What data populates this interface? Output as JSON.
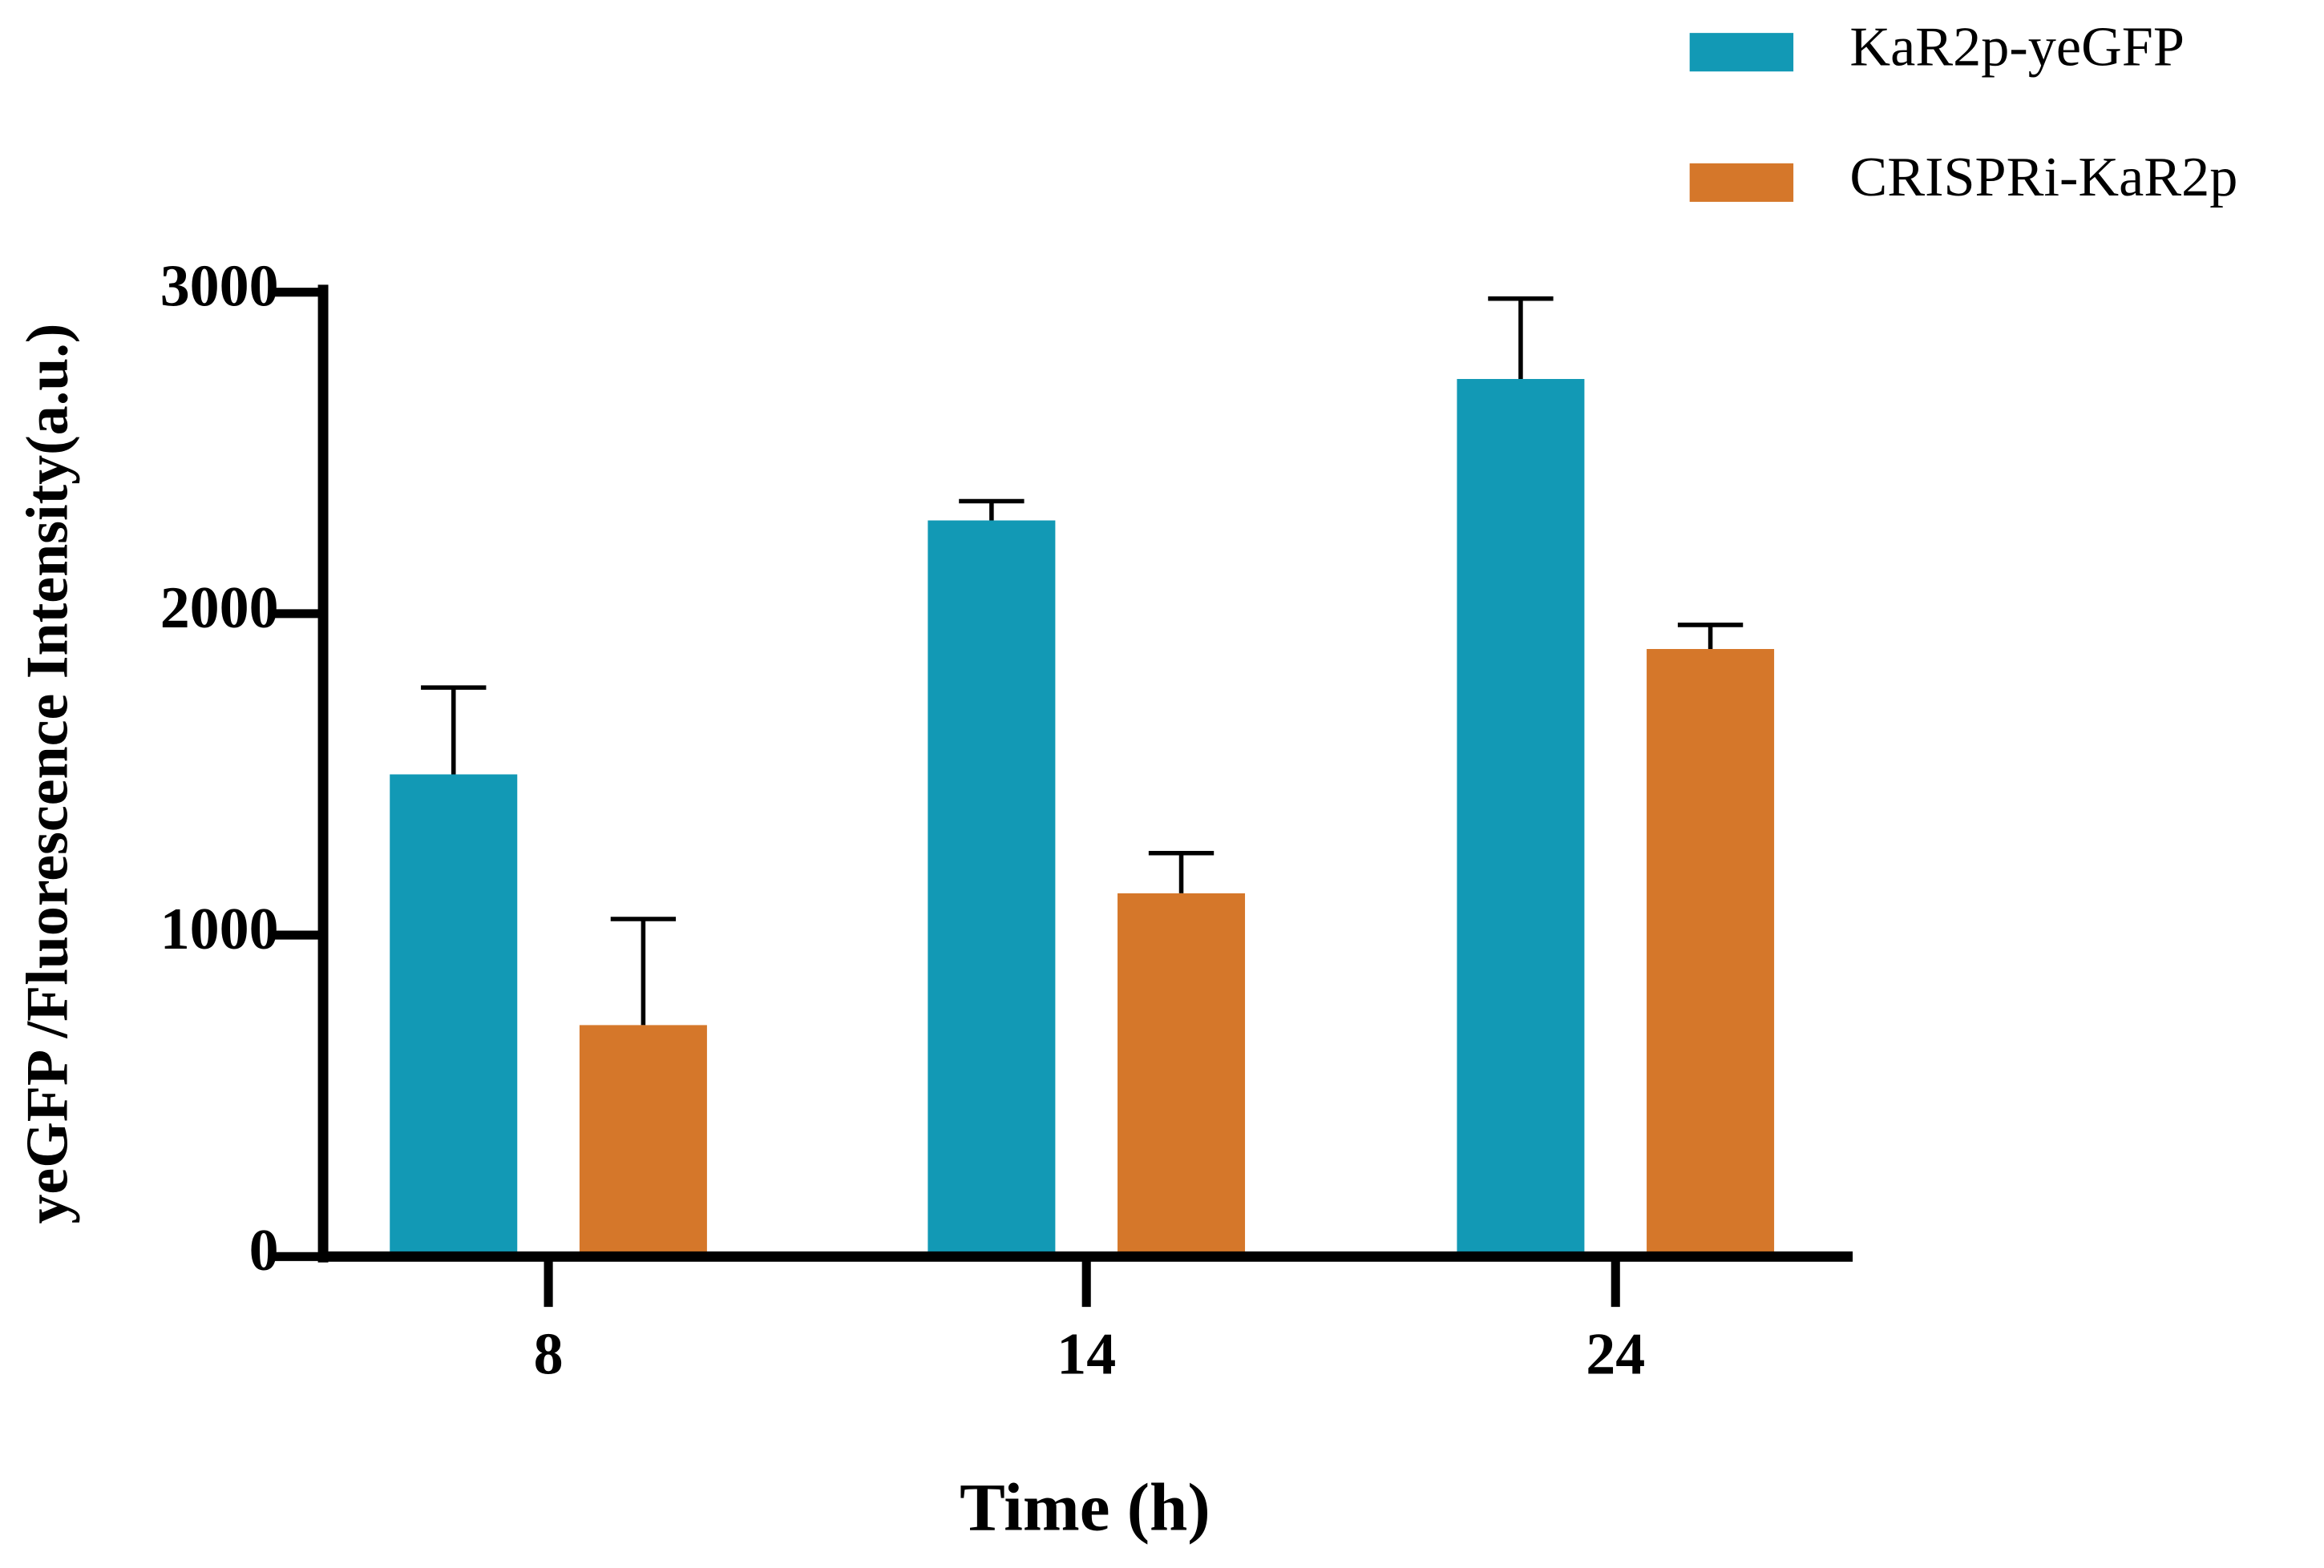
{
  "chart_data": {
    "type": "bar",
    "x_label": "Time (h)",
    "y_label": "yeGFP /Fluorescence Intensity(a.u.)",
    "categories": [
      "8",
      "14",
      "24"
    ],
    "series": [
      {
        "name": "KaR2p-yeGFP",
        "color": "#1299b5",
        "values": [
          1500,
          2290,
          2730
        ],
        "errors": [
          270,
          60,
          250
        ]
      },
      {
        "name": "CRISPRi-KaR2p",
        "color": "#d5772a",
        "values": [
          720,
          1130,
          1890
        ],
        "errors": [
          330,
          125,
          75
        ]
      }
    ],
    "ylim": [
      0,
      3000
    ],
    "yticks": [
      0,
      1000,
      2000,
      3000
    ],
    "grid": false,
    "legend": "top-right"
  }
}
